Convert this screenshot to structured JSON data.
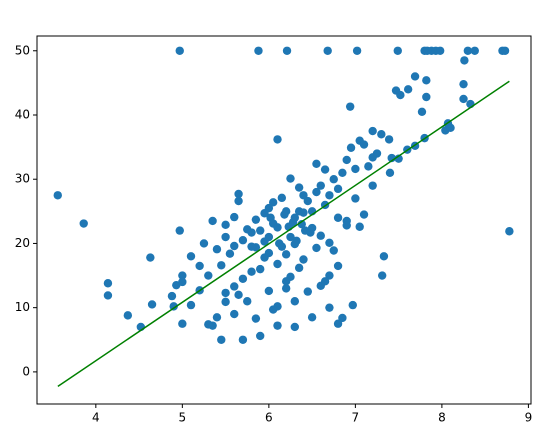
{
  "chart_data": {
    "type": "scatter",
    "xlim": [
      3.32,
      9.03
    ],
    "xticks": [
      4,
      5,
      6,
      7,
      8,
      9
    ],
    "ylim": [
      -5.0,
      52.3
    ],
    "yticks": [
      0,
      10,
      20,
      30,
      40,
      50
    ],
    "grid": false,
    "series": [
      {
        "color": "#1f77b4",
        "x": [
          3.56,
          3.86,
          4.14,
          4.14,
          4.37,
          4.52,
          4.63,
          4.65,
          4.88,
          4.9,
          4.97,
          5.0,
          4.93,
          5.0,
          4.97,
          5.88,
          6.21,
          6.68,
          7.02,
          7.49,
          7.8,
          7.83,
          7.88,
          7.93,
          7.98,
          8.3,
          8.38,
          8.7,
          8.73,
          8.78,
          7.69,
          7.82,
          7.82,
          7.47,
          7.52,
          7.61,
          8.26,
          8.25,
          8.25,
          8.33,
          8.04,
          8.07,
          7.69,
          7.42,
          7.33,
          7.31,
          6.97,
          7.39,
          7.77,
          8.1,
          6.94,
          7.2,
          5.5,
          5.6,
          5.7,
          5.8,
          5.85,
          5.9,
          5.95,
          6.0,
          6.02,
          6.05,
          6.1,
          6.12,
          6.15,
          6.18,
          6.2,
          6.23,
          6.25,
          6.28,
          6.3,
          6.32,
          6.35,
          6.38,
          6.4,
          6.42,
          6.45,
          6.48,
          6.5,
          6.55,
          6.6,
          6.65,
          6.7,
          6.75,
          6.8,
          6.85,
          6.9,
          6.95,
          7.0,
          7.05,
          7.1,
          7.15,
          7.2,
          7.25,
          7.3,
          6.0,
          5.95,
          5.9,
          5.8,
          5.7,
          5.6,
          5.65,
          5.75,
          5.5,
          5.4,
          5.35,
          5.45,
          5.7,
          5.9,
          5.85,
          6.1,
          6.3,
          6.5,
          6.8,
          6.85,
          6.45,
          6.6,
          6.7,
          6.65,
          6.2,
          6.3,
          6.1,
          6.0,
          5.3,
          5.2,
          5.1,
          5.25,
          5.35,
          5.4,
          5.5,
          5.65,
          5.65,
          6.1,
          6.4,
          6.55,
          6.65,
          6.8,
          6.9,
          7.0,
          7.1,
          7.05,
          6.9,
          7.2,
          7.4,
          7.5,
          7.6,
          7.8,
          6.25,
          6.35,
          6.0,
          6.05,
          5.95,
          5.85,
          6.15,
          6.5,
          6.6,
          6.7,
          6.75,
          6.4,
          6.35,
          6.3,
          6.2,
          6.1,
          6.55,
          6.8,
          6.7,
          6.25,
          5.8,
          5.75,
          5.55,
          5.45,
          5.6,
          5.0,
          5.1,
          5.2,
          5.3,
          5.5,
          5.6,
          6.05,
          6.2
        ],
        "values": [
          27.5,
          23.1,
          13.8,
          11.9,
          8.8,
          7.0,
          17.8,
          10.5,
          11.8,
          10.2,
          22.0,
          15.0,
          13.5,
          7.5,
          50,
          50,
          50,
          50,
          50,
          50,
          50,
          50,
          50,
          50,
          50,
          50,
          50,
          50,
          50,
          21.9,
          46.0,
          45.4,
          42.8,
          43.8,
          43.1,
          44.0,
          48.5,
          44.8,
          42.5,
          41.7,
          37.6,
          38.7,
          35.2,
          33.3,
          18.0,
          15.0,
          10.4,
          36.2,
          40.5,
          38.0,
          41.3,
          37.5,
          21,
          19.6,
          20.5,
          21.7,
          19.4,
          22,
          20.3,
          21,
          24,
          23.1,
          22.5,
          20,
          19.5,
          24.5,
          25,
          22.6,
          21,
          23.3,
          24,
          20.4,
          25,
          23,
          24.8,
          22,
          26.6,
          21.7,
          25,
          28,
          29,
          26,
          27.5,
          30,
          28.5,
          31,
          33,
          34.9,
          31.6,
          36,
          35.4,
          32,
          33.4,
          34,
          37,
          18.5,
          17.8,
          16,
          15.6,
          14.5,
          13.3,
          12,
          11,
          10.9,
          8.5,
          7.2,
          5.0,
          5.0,
          5.6,
          8.3,
          7.2,
          7.0,
          8.5,
          7.5,
          8.4,
          12.5,
          13.4,
          15,
          14.1,
          13,
          11,
          10.2,
          12.6,
          15,
          16.5,
          18,
          20,
          23.5,
          19.1,
          22.9,
          26.6,
          27.7,
          36.2,
          27.5,
          32.4,
          31.5,
          24,
          23.5,
          27,
          24.5,
          22.6,
          22.8,
          29,
          31,
          33.2,
          34.6,
          36.4,
          30.1,
          28.7,
          25.5,
          26.4,
          24.7,
          23.7,
          27.1,
          22.4,
          21.2,
          20.1,
          18.9,
          17.5,
          16.2,
          19.9,
          18.3,
          16.8,
          19.3,
          16.5,
          10,
          14.8,
          19.5,
          22.2,
          18.4,
          16.6,
          24.1,
          14,
          10.4,
          12.7,
          7.4,
          12.3,
          9,
          9.7,
          14.1
        ]
      },
      {
        "color": "#008000",
        "kind": "line",
        "x": [
          3.561,
          8.78
        ],
        "values": [
          -2.26,
          45.25
        ]
      }
    ]
  }
}
